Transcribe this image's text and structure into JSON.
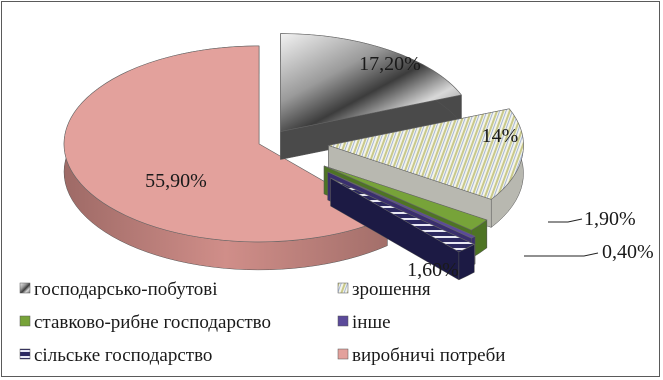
{
  "chart_data": {
    "type": "pie",
    "title": "",
    "slices": [
      {
        "name": "господарсько-побутові",
        "value": 17.2,
        "label": "17,20%",
        "color": "#b8b8b8"
      },
      {
        "name": "зрошення",
        "value": 14.0,
        "label": "14%",
        "color": "#dcdcdc"
      },
      {
        "name": "ставково-рибне господарство",
        "value": 1.9,
        "label": "1,90%",
        "color": "#77a339"
      },
      {
        "name": "інше",
        "value": 0.4,
        "label": "0,40%",
        "color": "#5b4a9a"
      },
      {
        "name": "сільське господарство",
        "value": 1.6,
        "label": "1,60%",
        "color": "#2c2860"
      },
      {
        "name": "виробничі потреби",
        "value": 55.9,
        "label": "55,90%",
        "color": "#e3a19c"
      }
    ],
    "legend_position": "bottom",
    "three_d": true,
    "exploded": true
  }
}
